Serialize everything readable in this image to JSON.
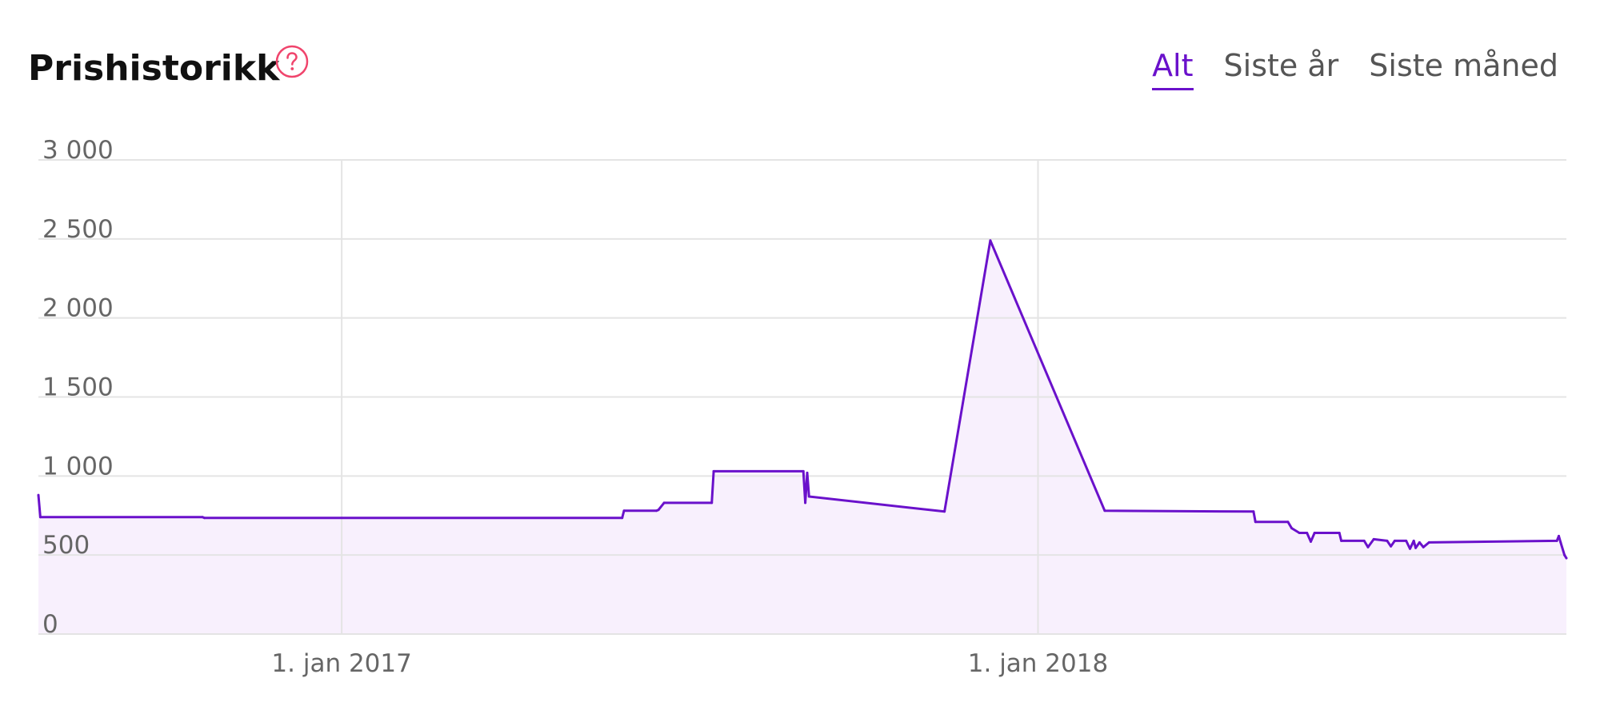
{
  "header": {
    "title": "Prishistorikk",
    "tabs": [
      {
        "label": "Alt",
        "active": true
      },
      {
        "label": "Siste år",
        "active": false
      },
      {
        "label": "Siste måned",
        "active": false
      }
    ]
  },
  "colors": {
    "accent": "#6a11cb",
    "fill": "#f8f0fd",
    "help_icon": "#f0446c",
    "grid": "#e4e4e4",
    "tick_label": "#666666",
    "tab_inactive": "#555555"
  },
  "chart_data": {
    "type": "area",
    "title": "",
    "xlabel": "",
    "ylabel": "",
    "ylim": [
      0,
      3000
    ],
    "xlim": [
      "2016-07-26",
      "2018-10-05"
    ],
    "y_ticks": [
      {
        "value": 0,
        "label": "0"
      },
      {
        "value": 500,
        "label": "500"
      },
      {
        "value": 1000,
        "label": "1 000"
      },
      {
        "value": 1500,
        "label": "1 500"
      },
      {
        "value": 2000,
        "label": "2 000"
      },
      {
        "value": 2500,
        "label": "2 500"
      },
      {
        "value": 3000,
        "label": "3 000"
      }
    ],
    "x_ticks": [
      {
        "value": "2017-01-01",
        "label": "1. jan 2017"
      },
      {
        "value": "2018-01-01",
        "label": "1. jan 2018"
      }
    ],
    "grid": true,
    "legend": "none",
    "series": [
      {
        "points": [
          [
            "2016-07-26",
            880
          ],
          [
            "2016-07-27",
            740
          ],
          [
            "2016-10-20",
            740
          ],
          [
            "2016-10-21",
            735
          ],
          [
            "2017-05-28",
            735
          ],
          [
            "2017-05-29",
            780
          ],
          [
            "2017-06-15",
            780
          ],
          [
            "2017-06-16",
            785
          ],
          [
            "2017-06-19",
            830
          ],
          [
            "2017-07-14",
            830
          ],
          [
            "2017-07-15",
            1030
          ],
          [
            "2017-08-31",
            1030
          ],
          [
            "2017-09-01",
            830
          ],
          [
            "2017-09-02",
            1020
          ],
          [
            "2017-09-03",
            870
          ],
          [
            "2017-11-13",
            775
          ],
          [
            "2017-12-07",
            2490
          ],
          [
            "2018-02-05",
            780
          ],
          [
            "2018-04-24",
            775
          ],
          [
            "2018-04-25",
            710
          ],
          [
            "2018-05-12",
            710
          ],
          [
            "2018-05-14",
            670
          ],
          [
            "2018-05-18",
            640
          ],
          [
            "2018-05-22",
            640
          ],
          [
            "2018-05-24",
            585
          ],
          [
            "2018-05-26",
            640
          ],
          [
            "2018-06-08",
            640
          ],
          [
            "2018-06-09",
            590
          ],
          [
            "2018-06-21",
            590
          ],
          [
            "2018-06-23",
            550
          ],
          [
            "2018-06-26",
            600
          ],
          [
            "2018-07-03",
            590
          ],
          [
            "2018-07-05",
            555
          ],
          [
            "2018-07-07",
            590
          ],
          [
            "2018-07-13",
            590
          ],
          [
            "2018-07-15",
            540
          ],
          [
            "2018-07-17",
            590
          ],
          [
            "2018-07-18",
            545
          ],
          [
            "2018-07-20",
            580
          ],
          [
            "2018-07-22",
            550
          ],
          [
            "2018-07-25",
            580
          ],
          [
            "2018-09-30",
            590
          ],
          [
            "2018-10-01",
            620
          ],
          [
            "2018-10-02",
            580
          ],
          [
            "2018-10-04",
            500
          ],
          [
            "2018-10-05",
            480
          ]
        ]
      }
    ]
  }
}
